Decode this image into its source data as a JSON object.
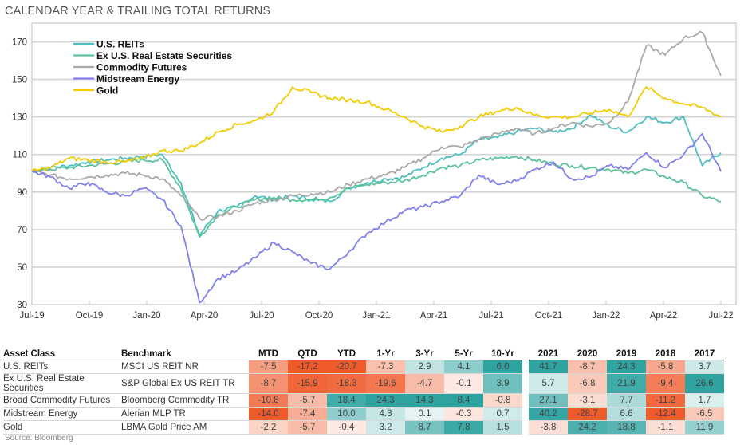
{
  "title": "CALENDAR YEAR & TRAILING TOTAL RETURNS",
  "source": "Source: Bloomberg",
  "chart_data": {
    "type": "line",
    "title": "CALENDAR YEAR & TRAILING TOTAL RETURNS",
    "xlabel": "",
    "ylabel": "",
    "ylim": [
      30,
      180
    ],
    "yticks": [
      30,
      50,
      70,
      90,
      110,
      130,
      150,
      170
    ],
    "xticks": [
      "Jul-19",
      "Oct-19",
      "Jan-20",
      "Apr-20",
      "Jul-20",
      "Oct-20",
      "Jan-21",
      "Apr-21",
      "Jul-21",
      "Oct-21",
      "Jan-22",
      "Apr-22",
      "Jul-22"
    ],
    "grid": true,
    "legend_position": "top-left",
    "x": [
      "Jul-19",
      "Aug-19",
      "Sep-19",
      "Oct-19",
      "Nov-19",
      "Dec-19",
      "Jan-20",
      "Feb-20",
      "Mar-20",
      "Mar-20b",
      "Apr-20",
      "May-20",
      "Jun-20",
      "Jul-20",
      "Aug-20",
      "Sep-20",
      "Oct-20",
      "Nov-20",
      "Dec-20",
      "Jan-21",
      "Feb-21",
      "Mar-21",
      "Apr-21",
      "May-21",
      "Jun-21",
      "Jul-21",
      "Aug-21",
      "Sep-21",
      "Oct-21",
      "Nov-21",
      "Dec-21",
      "Jan-22",
      "Feb-22",
      "Mar-22",
      "Apr-22",
      "May-22",
      "Jun-22",
      "Jul-22"
    ],
    "series": [
      {
        "name": "U.S. REITs",
        "color": "#4dbfbf",
        "values": [
          101,
          103,
          104,
          106,
          107,
          108,
          109,
          110,
          95,
          67,
          80,
          82,
          88,
          86,
          88,
          86,
          85,
          92,
          95,
          97,
          98,
          103,
          108,
          110,
          118,
          119,
          122,
          124,
          122,
          124,
          131,
          125,
          122,
          130,
          127,
          130,
          104,
          111
        ]
      },
      {
        "name": "Ex U.S. Real Estate Securities",
        "color": "#5cc29a",
        "values": [
          101,
          102,
          103,
          104,
          105,
          106,
          107,
          107,
          92,
          66,
          78,
          82,
          86,
          87,
          86,
          86,
          87,
          92,
          94,
          95,
          96,
          99,
          103,
          104,
          107,
          108,
          109,
          107,
          105,
          104,
          103,
          102,
          100,
          102,
          98,
          95,
          88,
          85
        ]
      },
      {
        "name": "Commodity Futures",
        "color": "#a9a9a9",
        "values": [
          101,
          99,
          97,
          98,
          99,
          100,
          99,
          97,
          88,
          76,
          77,
          80,
          84,
          86,
          88,
          89,
          90,
          94,
          97,
          99,
          103,
          108,
          114,
          114,
          118,
          121,
          124,
          121,
          124,
          127,
          125,
          127,
          138,
          168,
          163,
          172,
          175,
          152
        ]
      },
      {
        "name": "Midstream Energy",
        "color": "#8080ef",
        "values": [
          101,
          98,
          92,
          95,
          90,
          88,
          92,
          86,
          72,
          31,
          44,
          48,
          55,
          63,
          58,
          52,
          49,
          58,
          68,
          74,
          80,
          82,
          85,
          88,
          99,
          94,
          96,
          102,
          106,
          97,
          98,
          104,
          102,
          111,
          103,
          110,
          121,
          101
        ]
      },
      {
        "name": "Gold",
        "color": "#f3cc00",
        "values": [
          101,
          103,
          108,
          107,
          106,
          106,
          108,
          112,
          112,
          116,
          122,
          126,
          128,
          133,
          146,
          143,
          140,
          139,
          138,
          134,
          130,
          125,
          122,
          125,
          130,
          133,
          135,
          131,
          130,
          130,
          132,
          134,
          130,
          146,
          140,
          137,
          135,
          130
        ]
      }
    ]
  },
  "table": {
    "headers": {
      "asset_class": "Asset Class",
      "benchmark": "Benchmark",
      "trailing": [
        "MTD",
        "QTD",
        "YTD",
        "1-Yr",
        "3-Yr",
        "5-Yr",
        "10-Yr"
      ],
      "calendar": [
        "2021",
        "2020",
        "2019",
        "2018",
        "2017"
      ]
    },
    "rows": [
      {
        "asset_class": "U.S. REITs",
        "benchmark": "MSCI US REIT NR",
        "trailing": [
          "-7.5",
          "-17.2",
          "-20.7",
          "-7.3",
          "2.9",
          "4.1",
          "6.0"
        ],
        "calendar": [
          "41.7",
          "-8.7",
          "24.3",
          "-5.8",
          "3.7"
        ]
      },
      {
        "asset_class": "Ex U.S. Real Estate Securities",
        "benchmark": "S&P Global Ex US REIT TR",
        "trailing": [
          "-8.7",
          "-15.9",
          "-18.3",
          "-19.6",
          "-4.7",
          "-0.1",
          "3.9"
        ],
        "calendar": [
          "5.7",
          "-6.8",
          "21.9",
          "-9.4",
          "26.6"
        ]
      },
      {
        "asset_class": "Broad Commodity Futures",
        "benchmark": "Bloomberg Commodity TR",
        "trailing": [
          "-10.8",
          "-5.7",
          "18.4",
          "24.3",
          "14.3",
          "8.4",
          "-0.8"
        ],
        "calendar": [
          "27.1",
          "-3.1",
          "7.7",
          "-11.2",
          "1.7"
        ]
      },
      {
        "asset_class": "Midstream Energy",
        "benchmark": "Alerian MLP TR",
        "trailing": [
          "-14.0",
          "-7.4",
          "10.0",
          "4.3",
          "0.1",
          "-0.3",
          "0.7"
        ],
        "calendar": [
          "40.2",
          "-28.7",
          "6.6",
          "-12.4",
          "-6.5"
        ]
      },
      {
        "asset_class": "Gold",
        "benchmark": "LBMA Gold Price AM",
        "trailing": [
          "-2.2",
          "-5.7",
          "-0.4",
          "3.2",
          "8.7",
          "7.8",
          "1.5"
        ],
        "calendar": [
          "-3.8",
          "24.2",
          "18.8",
          "-1.1",
          "11.9"
        ]
      }
    ],
    "heat_colors": {
      "negative": "#ef5a2a",
      "positive": "#2ea3a0",
      "neutral": "#ffffff"
    }
  }
}
